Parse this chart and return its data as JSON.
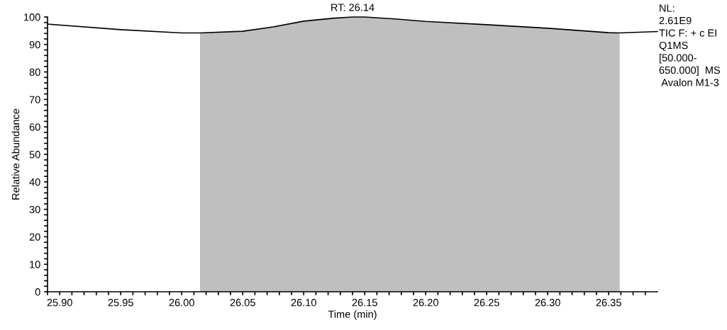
{
  "chart_data": {
    "type": "line",
    "xlabel": "Time (min)",
    "ylabel": "Relative Abundance",
    "xlim": [
      25.89,
      26.39
    ],
    "ylim": [
      0,
      100
    ],
    "xticks": [
      {
        "value": 25.89,
        "label": null
      },
      {
        "value": 25.9,
        "label": "25.90"
      },
      {
        "value": 25.91,
        "label": null
      },
      {
        "value": 25.92,
        "label": null
      },
      {
        "value": 25.93,
        "label": null
      },
      {
        "value": 25.94,
        "label": null
      },
      {
        "value": 25.95,
        "label": "25.95"
      },
      {
        "value": 25.96,
        "label": null
      },
      {
        "value": 25.97,
        "label": null
      },
      {
        "value": 25.98,
        "label": null
      },
      {
        "value": 25.99,
        "label": null
      },
      {
        "value": 26.0,
        "label": "26.00"
      },
      {
        "value": 26.01,
        "label": null
      },
      {
        "value": 26.02,
        "label": null
      },
      {
        "value": 26.03,
        "label": null
      },
      {
        "value": 26.04,
        "label": null
      },
      {
        "value": 26.05,
        "label": "26.05"
      },
      {
        "value": 26.06,
        "label": null
      },
      {
        "value": 26.07,
        "label": null
      },
      {
        "value": 26.08,
        "label": null
      },
      {
        "value": 26.09,
        "label": null
      },
      {
        "value": 26.1,
        "label": "26.10"
      },
      {
        "value": 26.11,
        "label": null
      },
      {
        "value": 26.12,
        "label": null
      },
      {
        "value": 26.13,
        "label": null
      },
      {
        "value": 26.14,
        "label": null
      },
      {
        "value": 26.15,
        "label": "26.15"
      },
      {
        "value": 26.16,
        "label": null
      },
      {
        "value": 26.17,
        "label": null
      },
      {
        "value": 26.18,
        "label": null
      },
      {
        "value": 26.19,
        "label": null
      },
      {
        "value": 26.2,
        "label": "26.20"
      },
      {
        "value": 26.21,
        "label": null
      },
      {
        "value": 26.22,
        "label": null
      },
      {
        "value": 26.23,
        "label": null
      },
      {
        "value": 26.24,
        "label": null
      },
      {
        "value": 26.25,
        "label": "26.25"
      },
      {
        "value": 26.26,
        "label": null
      },
      {
        "value": 26.27,
        "label": null
      },
      {
        "value": 26.28,
        "label": null
      },
      {
        "value": 26.29,
        "label": null
      },
      {
        "value": 26.3,
        "label": "26.30"
      },
      {
        "value": 26.31,
        "label": null
      },
      {
        "value": 26.32,
        "label": null
      },
      {
        "value": 26.33,
        "label": null
      },
      {
        "value": 26.34,
        "label": null
      },
      {
        "value": 26.35,
        "label": "26.35"
      },
      {
        "value": 26.36,
        "label": null
      },
      {
        "value": 26.37,
        "label": null
      },
      {
        "value": 26.38,
        "label": null
      }
    ],
    "yticks": [
      0,
      {
        "value": 2,
        "label": null
      },
      {
        "value": 4,
        "label": null
      },
      {
        "value": 6,
        "label": null
      },
      {
        "value": 8,
        "label": null
      },
      10,
      {
        "value": 12,
        "label": null
      },
      {
        "value": 14,
        "label": null
      },
      {
        "value": 16,
        "label": null
      },
      {
        "value": 18,
        "label": null
      },
      20,
      {
        "value": 22,
        "label": null
      },
      {
        "value": 24,
        "label": null
      },
      {
        "value": 26,
        "label": null
      },
      {
        "value": 28,
        "label": null
      },
      30,
      {
        "value": 32,
        "label": null
      },
      {
        "value": 34,
        "label": null
      },
      {
        "value": 36,
        "label": null
      },
      {
        "value": 38,
        "label": null
      },
      40,
      {
        "value": 42,
        "label": null
      },
      {
        "value": 44,
        "label": null
      },
      {
        "value": 46,
        "label": null
      },
      {
        "value": 48,
        "label": null
      },
      50,
      {
        "value": 52,
        "label": null
      },
      {
        "value": 54,
        "label": null
      },
      {
        "value": 56,
        "label": null
      },
      {
        "value": 58,
        "label": null
      },
      60,
      {
        "value": 62,
        "label": null
      },
      {
        "value": 64,
        "label": null
      },
      {
        "value": 66,
        "label": null
      },
      {
        "value": 68,
        "label": null
      },
      70,
      {
        "value": 72,
        "label": null
      },
      {
        "value": 74,
        "label": null
      },
      {
        "value": 76,
        "label": null
      },
      {
        "value": 78,
        "label": null
      },
      80,
      {
        "value": 82,
        "label": null
      },
      {
        "value": 84,
        "label": null
      },
      {
        "value": 86,
        "label": null
      },
      {
        "value": 88,
        "label": null
      },
      90,
      {
        "value": 92,
        "label": null
      },
      {
        "value": 94,
        "label": null
      },
      {
        "value": 96,
        "label": null
      },
      {
        "value": 98,
        "label": null
      },
      100
    ],
    "series": [
      {
        "type": "area",
        "color": "#bfbfbf",
        "x": [
          26.015,
          26.05,
          26.1,
          26.14,
          26.15,
          26.2,
          26.25,
          26.3,
          26.35,
          26.359
        ],
        "values": [
          94.2,
          94.8,
          98.5,
          100,
          100,
          98.4,
          97.2,
          95.9,
          94.3,
          94.2
        ]
      },
      {
        "color": "#000000",
        "x": [
          25.89,
          25.95,
          26.0,
          26.015,
          26.05,
          26.075,
          26.1,
          26.125,
          26.14,
          26.15,
          26.175,
          26.2,
          26.25,
          26.3,
          26.35,
          26.359,
          26.39
        ],
        "values": [
          97.4,
          95.4,
          94.2,
          94.2,
          94.8,
          96.4,
          98.5,
          99.6,
          100,
          100,
          99.3,
          98.4,
          97.2,
          95.9,
          94.3,
          94.2,
          94.7
        ]
      }
    ],
    "annotations": [
      {
        "text": "RT: 26.14",
        "x": 26.14,
        "y": 100
      },
      "NL:",
      "2.61E9",
      "TIC F: + c EI",
      "Q1MS",
      "[50.000-",
      "650.000]  MS",
      " Avalon M1-3"
    ]
  }
}
